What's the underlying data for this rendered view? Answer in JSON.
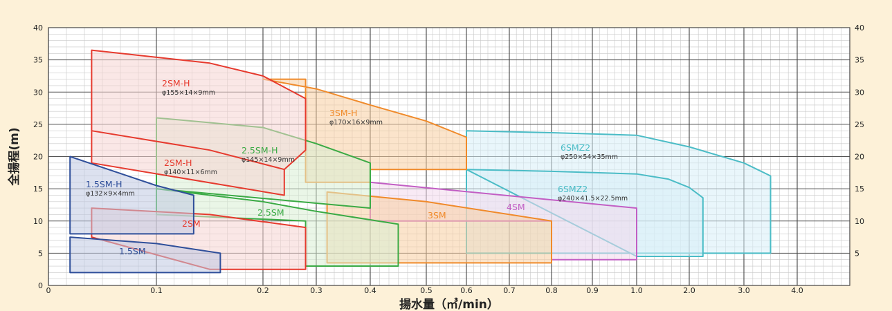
{
  "chart_data": {
    "type": "area",
    "title": "",
    "xlabel": "揚水量（㎥/min）",
    "ylabel": "全揚程(m)",
    "ylim": [
      0,
      40
    ],
    "x_scale": "log",
    "grid": true,
    "x_ticks": [
      {
        "label": "0",
        "v": 0.05
      },
      {
        "label": "0.1",
        "v": 0.1
      },
      {
        "label": "0.2",
        "v": 0.2
      },
      {
        "label": "0.3",
        "v": 0.3
      },
      {
        "label": "0.4",
        "v": 0.4
      },
      {
        "label": "0.5",
        "v": 0.5
      },
      {
        "label": "0.6",
        "v": 0.6
      },
      {
        "label": "0.7",
        "v": 0.7
      },
      {
        "label": "0.8",
        "v": 0.8
      },
      {
        "label": "0.9",
        "v": 0.9
      },
      {
        "label": "1.0",
        "v": 1.0
      },
      {
        "label": "2.0",
        "v": 2.0
      },
      {
        "label": "3.0",
        "v": 3.0
      },
      {
        "label": "4.0",
        "v": 4.0
      }
    ],
    "y_ticks": [
      {
        "label": "0",
        "v": 0
      },
      {
        "label": "5",
        "v": 5
      },
      {
        "label": "10",
        "v": 10
      },
      {
        "label": "15",
        "v": 15
      },
      {
        "label": "20",
        "v": 20
      },
      {
        "label": "25",
        "v": 25
      },
      {
        "label": "30",
        "v": 30
      },
      {
        "label": "35",
        "v": 35
      },
      {
        "label": "40",
        "v": 40
      }
    ],
    "series": [
      {
        "name": "6SMZ2",
        "spec": "φ250×54×35mm",
        "color": "#4bbcc6",
        "fill": "#d7eef7",
        "points": [
          [
            0.6,
            24
          ],
          [
            0.8,
            23.7
          ],
          [
            1.0,
            23.3
          ],
          [
            2.0,
            21.5
          ],
          [
            3.0,
            19
          ],
          [
            3.5,
            17
          ],
          [
            3.5,
            5
          ],
          [
            1.0,
            5
          ],
          [
            0.6,
            5
          ]
        ]
      },
      {
        "name": "6SMZ2",
        "spec": "φ240×41.5×22.5mm",
        "color": "#4bbcc6",
        "fill": "#d7eef7",
        "points": [
          [
            0.6,
            18
          ],
          [
            0.8,
            17.7
          ],
          [
            1.0,
            17.3
          ],
          [
            1.6,
            16.5
          ],
          [
            2.0,
            15.2
          ],
          [
            2.25,
            13.6
          ],
          [
            2.25,
            4.5
          ],
          [
            1.0,
            4.5
          ]
        ]
      },
      {
        "name": "4SM",
        "spec": "",
        "color": "#c25ec4",
        "fill": "#f3d9ec",
        "points": [
          [
            0.4,
            16
          ],
          [
            1.0,
            12
          ],
          [
            1.0,
            4
          ],
          [
            0.8,
            4
          ],
          [
            0.8,
            10
          ],
          [
            0.4,
            10
          ]
        ]
      },
      {
        "name": "3SM-H",
        "spec": "φ170×16×9mm",
        "color": "#f08a2a",
        "fill": "#f8cda0",
        "points": [
          [
            0.2,
            32
          ],
          [
            0.3,
            30.5
          ],
          [
            0.4,
            28
          ],
          [
            0.5,
            25.5
          ],
          [
            0.6,
            23
          ],
          [
            0.6,
            18
          ],
          [
            0.4,
            18
          ],
          [
            0.4,
            16
          ],
          [
            0.28,
            16
          ],
          [
            0.28,
            32
          ]
        ]
      },
      {
        "name": "3SM",
        "spec": "",
        "color": "#f08a2a",
        "fill": "#f8cda0",
        "points": [
          [
            0.32,
            14.5
          ],
          [
            0.5,
            13
          ],
          [
            0.8,
            10
          ],
          [
            0.8,
            3.5
          ],
          [
            0.45,
            3.5
          ],
          [
            0.32,
            3.5
          ]
        ]
      },
      {
        "name": "2.5SM-H",
        "spec": "φ145×14×9mm",
        "color": "#3aaa44",
        "fill": "#d9efd3",
        "points": [
          [
            0.1,
            26
          ],
          [
            0.2,
            24.5
          ],
          [
            0.3,
            22
          ],
          [
            0.4,
            19
          ],
          [
            0.4,
            12
          ],
          [
            0.1,
            15
          ]
        ]
      },
      {
        "name": "2.5SM",
        "spec": "",
        "color": "#3aaa44",
        "fill": "#d9efd3",
        "points": [
          [
            0.1,
            15
          ],
          [
            0.2,
            13
          ],
          [
            0.3,
            11.5
          ],
          [
            0.45,
            9.5
          ],
          [
            0.45,
            3
          ],
          [
            0.28,
            3
          ],
          [
            0.28,
            10
          ],
          [
            0.1,
            11
          ]
        ]
      },
      {
        "name": "2SM-H",
        "spec": "φ155×14×9mm",
        "color": "#e63a2e",
        "fill": "#f6d3d2",
        "points": [
          [
            0.07,
            36.5
          ],
          [
            0.15,
            34.5
          ],
          [
            0.2,
            32.5
          ],
          [
            0.28,
            29
          ],
          [
            0.28,
            21
          ],
          [
            0.24,
            18
          ],
          [
            0.24,
            14
          ],
          [
            0.07,
            19
          ]
        ]
      },
      {
        "name": "2SM-H",
        "spec": "φ140×11×6mm",
        "color": "#e63a2e",
        "fill": "#f6d3d2",
        "points": [
          [
            0.07,
            24
          ],
          [
            0.15,
            21
          ],
          [
            0.24,
            18
          ]
        ]
      },
      {
        "name": "2SM",
        "spec": "",
        "color": "#e63a2e",
        "fill": "#f6d3d2",
        "points": [
          [
            0.07,
            12
          ],
          [
            0.15,
            11
          ],
          [
            0.28,
            9
          ],
          [
            0.28,
            2.5
          ],
          [
            0.15,
            2.5
          ],
          [
            0.07,
            7.5
          ]
        ]
      },
      {
        "name": "1.5SM-H",
        "spec": "φ132×9×4mm",
        "color": "#2f4f9a",
        "fill": "#bfc8e2",
        "points": [
          [
            0.06,
            20
          ],
          [
            0.1,
            15.5
          ],
          [
            0.135,
            14
          ],
          [
            0.135,
            8
          ],
          [
            0.06,
            8
          ]
        ]
      },
      {
        "name": "1.5SM",
        "spec": "",
        "color": "#2f4f9a",
        "fill": "#bfc8e2",
        "points": [
          [
            0.06,
            7.5
          ],
          [
            0.1,
            6.5
          ],
          [
            0.16,
            5
          ],
          [
            0.16,
            2
          ],
          [
            0.06,
            2
          ]
        ]
      }
    ]
  }
}
